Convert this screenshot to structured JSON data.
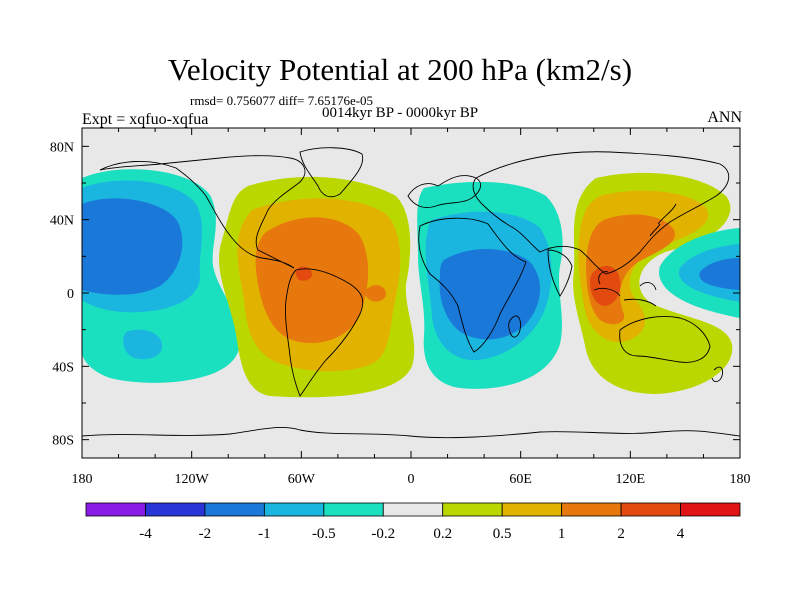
{
  "chart_data": {
    "type": "heatmap",
    "title": "Velocity Potential at 200 hPa (km2/s)",
    "stats_text": "rmsd= 0.756077 diff= 7.65176e-05",
    "period_text": "0014kyr BP - 0000kyr BP",
    "left_label": "Expt = xqfuo-xqfua",
    "right_label": "ANN",
    "projection": "cylindrical equidistant, lon -180..180, lat -90..90",
    "x_ticks": [
      {
        "lon": -180,
        "label": "180"
      },
      {
        "lon": -120,
        "label": "120W"
      },
      {
        "lon": -60,
        "label": "60W"
      },
      {
        "lon": 0,
        "label": "0"
      },
      {
        "lon": 60,
        "label": "60E"
      },
      {
        "lon": 120,
        "label": "120E"
      },
      {
        "lon": 180,
        "label": "180"
      }
    ],
    "y_ticks": [
      {
        "lat": 80,
        "label": "80N"
      },
      {
        "lat": 40,
        "label": "40N"
      },
      {
        "lat": 0,
        "label": "0"
      },
      {
        "lat": -40,
        "label": "40S"
      },
      {
        "lat": -80,
        "label": "80S"
      }
    ],
    "colorbar": {
      "levels": [
        "-4",
        "-2",
        "-1",
        "-0.5",
        "-0.2",
        "0.2",
        "0.5",
        "1",
        "2",
        "4"
      ],
      "colors": [
        "#8a1ae6",
        "#2a35d8",
        "#1a78d8",
        "#1ab6e0",
        "#1ae0c0",
        "#e8e8e8",
        "#bad800",
        "#e2b200",
        "#e6780e",
        "#e24a10",
        "#e01414"
      ]
    },
    "field_features": [
      {
        "name": "Central Pacific divergence low",
        "lon": -150,
        "lat": 15,
        "min_level": "-2 to -1"
      },
      {
        "name": "South America positive center",
        "lon": -55,
        "lat": 5,
        "max_level": "2 to 4"
      },
      {
        "name": "Africa / Indian Ocean negative center",
        "lon": 45,
        "lat": 0,
        "min_level": "-2 to -1"
      },
      {
        "name": "Maritime Continent positive center",
        "lon": 110,
        "lat": 5,
        "max_level": "2 to 4"
      },
      {
        "name": "Western Pacific negative tongue",
        "lon": 170,
        "lat": 10,
        "min_level": "-2 to -1"
      }
    ]
  }
}
